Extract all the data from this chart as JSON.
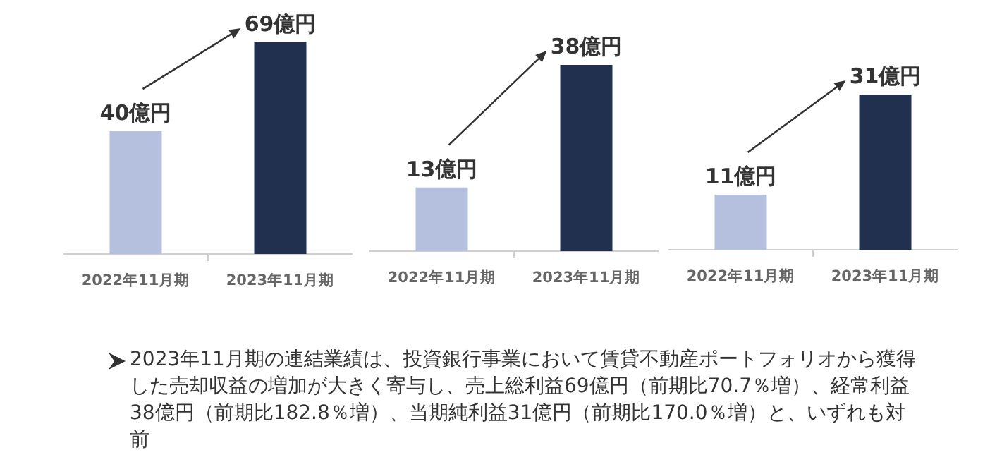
{
  "chart_data": [
    {
      "type": "bar",
      "categories": [
        "2022年11月期",
        "2023年11月期"
      ],
      "values": [
        40,
        69
      ],
      "colors": [
        "#b4c0de",
        "#223050"
      ],
      "value_labels": [
        "40億円",
        "69億円"
      ]
    },
    {
      "type": "bar",
      "categories": [
        "2022年11月期",
        "2023年11月期"
      ],
      "values": [
        13,
        38
      ],
      "colors": [
        "#b4c0de",
        "#223050"
      ],
      "value_labels": [
        "13億円",
        "38億円"
      ]
    },
    {
      "type": "bar",
      "categories": [
        "2022年11月期",
        "2023年11月期"
      ],
      "values": [
        11,
        31
      ],
      "colors": [
        "#b4c0de",
        "#223050"
      ],
      "value_labels": [
        "11億円",
        "31億円"
      ]
    },
    {
      "type": "other",
      "annotations": [
        "2023年11月期の連結業績は、投資銀行事業において賃貸不動産ポートフォリオから獲得した売却収益の増加が大きく寄与し、売上総利益69億円（前期比70.7％増）、経常利益38億円（前期比182.8％増）、当期純利益31億円（前期比170.0％増）と、いずれも対前"
      ]
    }
  ]
}
